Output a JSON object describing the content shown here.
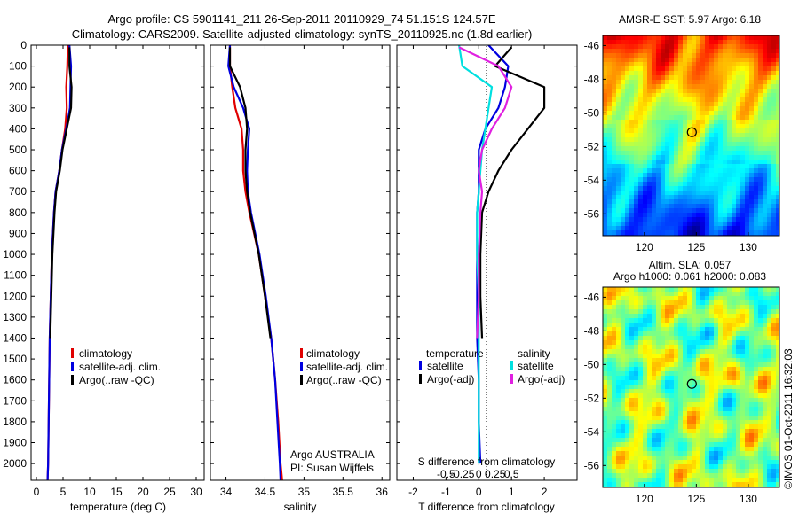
{
  "header": {
    "title_line1": "Argo profile: CS 5901141_211 26-Sep-2011 20110929_74 51.151S 124.57E",
    "title_line2": "Climatology: CARS2009. Satellite-adjusted climatology: synTS_20110925.nc (1.8d earlier)"
  },
  "colors": {
    "climatology": "#e00000",
    "satellite": "#0000e0",
    "argo": "#000000",
    "s_satellite": "#00e0e0",
    "s_argo": "#e020e0"
  },
  "chart_data": [
    {
      "type": "line",
      "id": "temperature",
      "xlabel": "temperature (deg C)",
      "ylabel": "",
      "xlim": [
        -1,
        31.5
      ],
      "ylim": [
        2080,
        0
      ],
      "xticks": [
        0,
        5,
        10,
        15,
        20,
        25,
        30
      ],
      "yticks": [
        0,
        100,
        200,
        300,
        400,
        500,
        600,
        700,
        800,
        900,
        1000,
        1100,
        1200,
        1300,
        1400,
        1500,
        1600,
        1700,
        1800,
        1900,
        2000
      ],
      "legend": [
        "climatology",
        "satellite-adj. clim.",
        "Argo(..raw -QC)"
      ],
      "series": [
        {
          "name": "climatology",
          "color": "#e00000",
          "x": [
            5.9,
            5.8,
            5.6,
            5.7,
            5.4,
            4.8,
            4.3,
            3.6,
            3.3,
            2.9,
            2.7,
            2.5,
            2.4,
            2.3,
            2.2,
            2.1
          ],
          "y": [
            0,
            100,
            200,
            300,
            400,
            500,
            600,
            700,
            800,
            1000,
            1200,
            1400,
            1600,
            1800,
            2000,
            2080
          ]
        },
        {
          "name": "satellite-adj. clim.",
          "color": "#0000e0",
          "x": [
            6.2,
            6.5,
            6.4,
            6.3,
            5.6,
            4.8,
            4.3,
            3.6,
            3.3,
            2.9,
            2.7,
            2.5,
            2.4,
            2.3,
            2.2,
            2.1
          ],
          "y": [
            0,
            100,
            200,
            300,
            400,
            500,
            600,
            700,
            800,
            1000,
            1200,
            1400,
            1600,
            1800,
            2000,
            2080
          ]
        },
        {
          "name": "Argo(..raw -QC)",
          "color": "#000000",
          "x": [
            6.2,
            6.2,
            6.6,
            6.5,
            5.7,
            4.9,
            4.4,
            3.7,
            3.4,
            3.0,
            2.8,
            2.6
          ],
          "y": [
            10,
            100,
            200,
            300,
            400,
            500,
            600,
            700,
            800,
            1000,
            1200,
            1400
          ]
        }
      ]
    },
    {
      "type": "line",
      "id": "salinity",
      "xlabel": "salinity",
      "ylabel": "",
      "xlim": [
        33.8,
        36.1
      ],
      "ylim": [
        2080,
        0
      ],
      "xticks": [
        34,
        34.5,
        35,
        35.5,
        36
      ],
      "legend": [
        "climatology",
        "satellite-adj. clim.",
        "Argo(..raw -QC)"
      ],
      "annotations": [
        "Argo AUSTRALIA",
        "PI: Susan Wijffels"
      ],
      "series": [
        {
          "name": "climatology",
          "color": "#e00000",
          "x": [
            34.05,
            34.05,
            34.08,
            34.12,
            34.2,
            34.22,
            34.22,
            34.25,
            34.3,
            34.42,
            34.5,
            34.58,
            34.63,
            34.67,
            34.7,
            34.72
          ],
          "y": [
            0,
            100,
            200,
            300,
            400,
            500,
            600,
            700,
            800,
            1000,
            1200,
            1400,
            1600,
            1800,
            2000,
            2080
          ]
        },
        {
          "name": "satellite-adj. clim.",
          "color": "#0000e0",
          "x": [
            34.05,
            34.03,
            34.1,
            34.22,
            34.3,
            34.28,
            34.27,
            34.28,
            34.32,
            34.43,
            34.51,
            34.58,
            34.63,
            34.66,
            34.69,
            34.7
          ],
          "y": [
            0,
            100,
            200,
            300,
            400,
            500,
            600,
            700,
            800,
            1000,
            1200,
            1400,
            1600,
            1800,
            2000,
            2080
          ]
        },
        {
          "name": "Argo(..raw -QC)",
          "color": "#000000",
          "x": [
            34.05,
            34.05,
            34.18,
            34.25,
            34.27,
            34.25,
            34.25,
            34.27,
            34.31,
            34.42,
            34.5,
            34.57
          ],
          "y": [
            10,
            100,
            200,
            300,
            400,
            500,
            600,
            700,
            800,
            1000,
            1200,
            1400
          ]
        }
      ]
    },
    {
      "type": "line",
      "id": "difference",
      "xlabel": "T difference from climatology",
      "xlabel_top": "S difference from climatology",
      "xlim": [
        -2.5,
        3
      ],
      "ylim": [
        2080,
        0
      ],
      "xticks": [
        -2,
        -1,
        0,
        1,
        2
      ],
      "s_ticks": [
        -0.5,
        -0.25,
        0,
        0.25,
        0.5
      ],
      "legend_groups": [
        {
          "title": "temperature",
          "items": [
            "satellite",
            "Argo(-adj)"
          ]
        },
        {
          "title": "salinity",
          "items": [
            "satellite",
            "Argo(-adj)"
          ]
        }
      ],
      "series": [
        {
          "name": "T satellite",
          "color": "#0000e0",
          "x": [
            0.3,
            0.9,
            0.8,
            0.6,
            0.2,
            0.0,
            0.0,
            0.0,
            -0.05,
            -0.05,
            -0.05,
            -0.05,
            0.0,
            0.0,
            0.05
          ],
          "y": [
            0,
            100,
            200,
            300,
            400,
            500,
            600,
            700,
            800,
            1000,
            1200,
            1400,
            1600,
            1800,
            2000
          ]
        },
        {
          "name": "T Argo(-adj)",
          "color": "#000000",
          "x": [
            1.0,
            0.5,
            2.0,
            2.0,
            1.5,
            1.0,
            0.6,
            0.3,
            0.1,
            0.05,
            0.05,
            0.1
          ],
          "y": [
            10,
            100,
            200,
            300,
            400,
            500,
            600,
            700,
            800,
            1000,
            1200,
            1400
          ]
        },
        {
          "name": "S satellite",
          "color": "#00e0e0",
          "x": [
            -0.6,
            -0.5,
            0.4,
            0.3,
            0.2,
            0.1,
            0.05,
            0.0,
            -0.05,
            -0.05,
            0.0,
            0.0,
            0.0,
            0.0,
            0.0
          ],
          "y": [
            0,
            100,
            200,
            300,
            400,
            500,
            600,
            700,
            800,
            1000,
            1200,
            1400,
            1600,
            1800,
            2000
          ]
        },
        {
          "name": "S Argo(-adj)",
          "color": "#e020e0",
          "x": [
            -0.6,
            0.6,
            1.0,
            0.8,
            0.4,
            0.1,
            0.0,
            0.1,
            0.05,
            0.0,
            0.0,
            -0.05
          ],
          "y": [
            10,
            100,
            200,
            300,
            400,
            500,
            600,
            700,
            800,
            1000,
            1200,
            1400
          ]
        }
      ]
    },
    {
      "type": "heatmap",
      "id": "sst_map",
      "title": "AMSR-E SST: 5.97  Argo: 6.18",
      "xlim": [
        116,
        133
      ],
      "ylim": [
        -57.3,
        -45.4
      ],
      "xticks": [
        120,
        125,
        130
      ],
      "yticks": [
        -46,
        -48,
        -50,
        -52,
        -54,
        -56
      ],
      "marker": {
        "lon": 124.57,
        "lat": -51.151
      }
    },
    {
      "type": "heatmap",
      "id": "sla_map",
      "title": "Altim. SLA: 0.057",
      "subtitle": "Argo h1000: 0.061 h2000: 0.083",
      "xlim": [
        116,
        133
      ],
      "ylim": [
        -57.3,
        -45.4
      ],
      "xticks": [
        120,
        125,
        130
      ],
      "yticks": [
        -46,
        -48,
        -50,
        -52,
        -54,
        -56
      ],
      "marker": {
        "lon": 124.57,
        "lat": -51.151
      }
    }
  ],
  "footer": {
    "stamp": "©IMOS 01-Oct-2011 16:32:03"
  }
}
